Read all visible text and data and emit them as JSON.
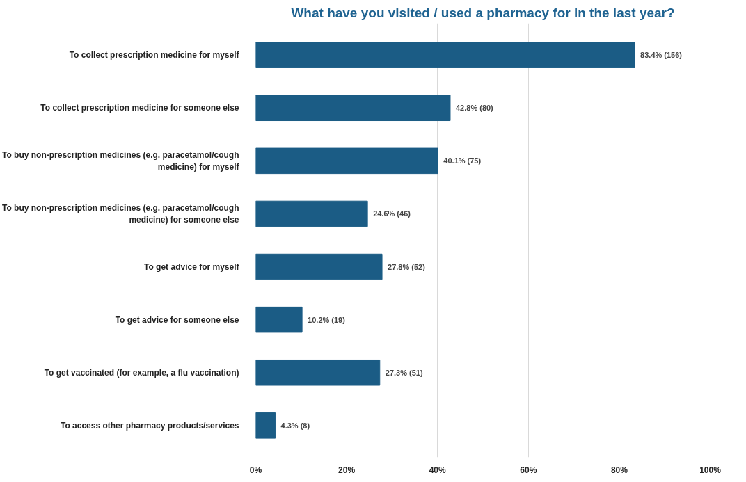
{
  "chart_data": {
    "type": "bar",
    "orientation": "horizontal",
    "title": "What have you visited / used a pharmacy for in the last year?",
    "categories": [
      "To collect prescription medicine for myself",
      "To collect prescription medicine for someone else",
      "To buy non-prescription medicines (e.g. paracetamol/cough medicine) for myself",
      "To buy non-prescription medicines (e.g. paracetamol/cough medicine) for someone else",
      "To get advice for myself",
      "To get advice for someone else",
      "To get vaccinated (for example, a flu vaccination)",
      "To access other pharmacy products/services"
    ],
    "values": [
      83.4,
      42.8,
      40.1,
      24.6,
      27.8,
      10.2,
      27.3,
      4.3
    ],
    "value_labels": [
      "83.4% (156)",
      "42.8% (80)",
      "40.1% (75)",
      "24.6% (46)",
      "27.8% (52)",
      "10.2% (19)",
      "27.3% (51)",
      "4.3% (8)"
    ],
    "color": "#1b5c85",
    "xlim": [
      0,
      100
    ],
    "xticks": [
      {
        "value": 0,
        "label": "0%"
      },
      {
        "value": 20,
        "label": "20%"
      },
      {
        "value": 40,
        "label": "40%"
      },
      {
        "value": 60,
        "label": "60%"
      },
      {
        "value": 80,
        "label": "80%"
      },
      {
        "value": 100,
        "label": "100%"
      }
    ],
    "grid": "x"
  }
}
